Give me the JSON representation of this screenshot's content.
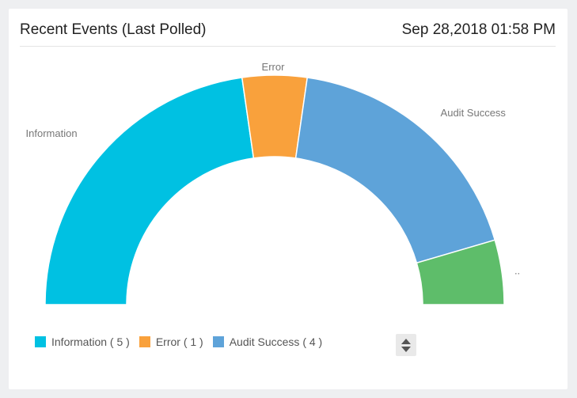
{
  "header": {
    "title": "Recent Events (Last Polled)",
    "timestamp": "Sep 28,2018 01:58 PM"
  },
  "chart_data": {
    "type": "pie",
    "style": "semi-donut",
    "title": "Recent Events (Last Polled)",
    "slices": [
      {
        "name": "Information",
        "value": 5,
        "color": "#00c1e2",
        "label": "Information"
      },
      {
        "name": "Error",
        "value": 1,
        "color": "#f9a13c",
        "label": "Error"
      },
      {
        "name": "Audit Success",
        "value": 4,
        "color": "#5ea3d9",
        "label": "Audit Success"
      },
      {
        "name": "",
        "value": 1,
        "color": "#5ebd6a",
        "label": ".."
      }
    ],
    "legend_position": "bottom-left"
  },
  "legend": {
    "items": [
      {
        "text": "Information ( 5 )",
        "color": "#00c1e2"
      },
      {
        "text": "Error ( 1 )",
        "color": "#f9a13c"
      },
      {
        "text": "Audit Success ( 4 )",
        "color": "#5ea3d9"
      }
    ]
  },
  "pager": {
    "icons": [
      "arrow-up-icon",
      "arrow-down-icon"
    ]
  }
}
